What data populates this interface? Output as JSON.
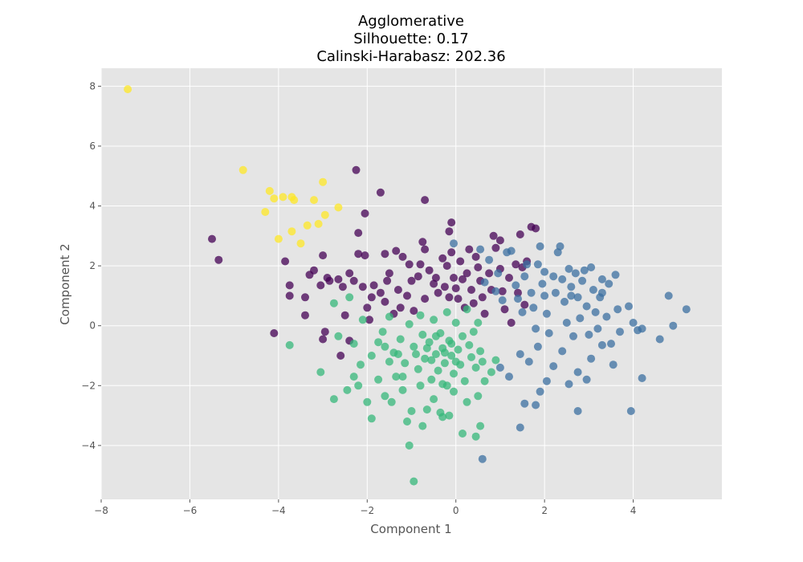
{
  "chart_data": {
    "type": "scatter",
    "title_lines": [
      "Agglomerative",
      "Silhouette: 0.17",
      "Calinski-Harabasz: 202.36"
    ],
    "xlabel": "Component 1",
    "ylabel": "Component 2",
    "xlim": [
      -8,
      6
    ],
    "ylim": [
      -5.8,
      8.6
    ],
    "xticks": [
      -8,
      -6,
      -4,
      -2,
      0,
      2,
      4
    ],
    "yticks": [
      -4,
      -2,
      0,
      2,
      4,
      6,
      8
    ],
    "xtick_labels": [
      "−8",
      "−6",
      "−4",
      "−2",
      "0",
      "2",
      "4"
    ],
    "ytick_labels": [
      "−4",
      "−2",
      "0",
      "2",
      "4",
      "6",
      "8"
    ],
    "grid": true,
    "background": "#e5e5e5",
    "marker_opacity": 0.75,
    "series": [
      {
        "color": "#fde725",
        "points": [
          [
            -7.4,
            7.9
          ],
          [
            -4.8,
            5.2
          ],
          [
            -4.2,
            4.5
          ],
          [
            -4.1,
            4.25
          ],
          [
            -3.9,
            4.3
          ],
          [
            -3.7,
            4.3
          ],
          [
            -3.65,
            4.2
          ],
          [
            -3.0,
            4.8
          ],
          [
            -3.2,
            4.2
          ],
          [
            -2.65,
            3.95
          ],
          [
            -2.95,
            3.7
          ],
          [
            -3.1,
            3.4
          ],
          [
            -3.35,
            3.35
          ],
          [
            -4.3,
            3.8
          ],
          [
            -3.7,
            3.15
          ],
          [
            -4.0,
            2.9
          ],
          [
            -3.5,
            2.75
          ]
        ]
      },
      {
        "color": "#440154",
        "points": [
          [
            -5.5,
            2.9
          ],
          [
            -5.35,
            2.2
          ],
          [
            -4.1,
            -0.25
          ],
          [
            -3.85,
            2.15
          ],
          [
            -3.75,
            1.35
          ],
          [
            -3.75,
            1.0
          ],
          [
            -3.4,
            0.95
          ],
          [
            -3.4,
            0.35
          ],
          [
            -3.3,
            1.7
          ],
          [
            -3.2,
            1.85
          ],
          [
            -3.05,
            1.35
          ],
          [
            -3.0,
            2.35
          ],
          [
            -2.9,
            1.6
          ],
          [
            -2.85,
            1.5
          ],
          [
            -2.65,
            1.55
          ],
          [
            -2.55,
            1.3
          ],
          [
            -2.5,
            0.35
          ],
          [
            -3.0,
            -0.45
          ],
          [
            -2.95,
            -0.2
          ],
          [
            -2.6,
            -1.0
          ],
          [
            -2.4,
            -0.5
          ],
          [
            -2.25,
            5.2
          ],
          [
            -2.2,
            3.1
          ],
          [
            -2.05,
            3.75
          ],
          [
            -2.2,
            2.4
          ],
          [
            -2.05,
            2.35
          ],
          [
            -2.4,
            1.75
          ],
          [
            -2.3,
            1.5
          ],
          [
            -2.1,
            1.3
          ],
          [
            -2.0,
            0.6
          ],
          [
            -1.95,
            0.2
          ],
          [
            -1.7,
            4.45
          ],
          [
            -1.6,
            2.4
          ],
          [
            -1.5,
            1.75
          ],
          [
            -1.7,
            1.1
          ],
          [
            -1.6,
            0.8
          ],
          [
            -1.4,
            0.4
          ],
          [
            -1.35,
            2.5
          ],
          [
            -1.3,
            1.2
          ],
          [
            -1.25,
            0.6
          ],
          [
            -1.2,
            2.3
          ],
          [
            -1.05,
            2.05
          ],
          [
            -1.1,
            1.0
          ],
          [
            -0.95,
            0.5
          ],
          [
            -0.85,
            1.65
          ],
          [
            -0.8,
            2.05
          ],
          [
            -0.7,
            4.2
          ],
          [
            -0.75,
            2.8
          ],
          [
            -0.7,
            2.55
          ],
          [
            -0.6,
            1.85
          ],
          [
            -0.5,
            1.4
          ],
          [
            -0.4,
            1.1
          ],
          [
            -0.3,
            2.25
          ],
          [
            -0.2,
            2.0
          ],
          [
            -0.25,
            1.3
          ],
          [
            -0.15,
            0.95
          ],
          [
            -0.1,
            3.45
          ],
          [
            -0.15,
            3.15
          ],
          [
            -0.1,
            2.45
          ],
          [
            -0.05,
            1.6
          ],
          [
            0.05,
            0.9
          ],
          [
            0.1,
            2.15
          ],
          [
            0.15,
            1.55
          ],
          [
            0.2,
            0.6
          ],
          [
            0.3,
            2.55
          ],
          [
            0.35,
            1.2
          ],
          [
            0.4,
            0.75
          ],
          [
            0.45,
            2.3
          ],
          [
            0.5,
            1.95
          ],
          [
            0.55,
            1.5
          ],
          [
            0.6,
            0.95
          ],
          [
            0.65,
            0.4
          ],
          [
            0.75,
            1.75
          ],
          [
            0.8,
            1.2
          ],
          [
            0.85,
            3.0
          ],
          [
            0.9,
            2.6
          ],
          [
            1.0,
            2.85
          ],
          [
            1.0,
            1.9
          ],
          [
            1.05,
            1.15
          ],
          [
            1.1,
            0.55
          ],
          [
            1.2,
            1.6
          ],
          [
            1.25,
            0.1
          ],
          [
            1.35,
            2.05
          ],
          [
            1.4,
            1.1
          ],
          [
            1.45,
            3.05
          ],
          [
            1.5,
            1.95
          ],
          [
            1.55,
            0.7
          ],
          [
            1.6,
            2.15
          ],
          [
            1.7,
            3.3
          ],
          [
            1.8,
            3.25
          ],
          [
            -1.85,
            1.35
          ],
          [
            -1.55,
            1.5
          ],
          [
            -1.0,
            1.5
          ],
          [
            -0.45,
            1.6
          ],
          [
            0.0,
            1.25
          ],
          [
            -0.7,
            0.9
          ],
          [
            -1.9,
            0.95
          ],
          [
            0.25,
            1.75
          ]
        ]
      },
      {
        "color": "#3b6fa0",
        "points": [
          [
            -0.05,
            2.75
          ],
          [
            0.55,
            2.55
          ],
          [
            0.75,
            2.2
          ],
          [
            0.65,
            1.45
          ],
          [
            0.95,
            1.75
          ],
          [
            0.9,
            1.15
          ],
          [
            1.05,
            0.85
          ],
          [
            1.15,
            2.45
          ],
          [
            1.25,
            2.5
          ],
          [
            1.35,
            1.35
          ],
          [
            1.4,
            0.9
          ],
          [
            1.5,
            0.45
          ],
          [
            1.55,
            1.65
          ],
          [
            1.6,
            2.05
          ],
          [
            1.7,
            1.1
          ],
          [
            1.75,
            0.6
          ],
          [
            1.8,
            -0.1
          ],
          [
            1.85,
            2.05
          ],
          [
            1.9,
            2.65
          ],
          [
            1.95,
            1.4
          ],
          [
            2.0,
            1.0
          ],
          [
            2.05,
            0.4
          ],
          [
            2.1,
            -0.25
          ],
          [
            2.2,
            1.65
          ],
          [
            2.25,
            1.1
          ],
          [
            2.3,
            2.45
          ],
          [
            2.35,
            2.65
          ],
          [
            2.4,
            1.55
          ],
          [
            2.45,
            0.8
          ],
          [
            2.5,
            0.1
          ],
          [
            2.55,
            1.9
          ],
          [
            2.6,
            1.3
          ],
          [
            2.65,
            -0.35
          ],
          [
            2.7,
            1.75
          ],
          [
            2.75,
            0.95
          ],
          [
            2.8,
            0.25
          ],
          [
            2.85,
            1.5
          ],
          [
            2.9,
            1.85
          ],
          [
            2.95,
            0.65
          ],
          [
            3.0,
            -0.3
          ],
          [
            3.05,
            1.95
          ],
          [
            3.1,
            1.2
          ],
          [
            3.15,
            0.45
          ],
          [
            3.2,
            -0.1
          ],
          [
            3.25,
            0.95
          ],
          [
            3.3,
            1.55
          ],
          [
            3.4,
            0.3
          ],
          [
            3.45,
            1.4
          ],
          [
            3.5,
            -0.6
          ],
          [
            3.6,
            1.7
          ],
          [
            3.65,
            0.55
          ],
          [
            3.7,
            -0.2
          ],
          [
            3.9,
            0.65
          ],
          [
            4.0,
            0.1
          ],
          [
            4.1,
            -0.15
          ],
          [
            4.2,
            -0.1
          ],
          [
            4.6,
            -0.45
          ],
          [
            4.8,
            1.0
          ],
          [
            4.9,
            0.0
          ],
          [
            5.2,
            0.55
          ],
          [
            1.45,
            -0.95
          ],
          [
            1.65,
            -1.2
          ],
          [
            1.85,
            -0.7
          ],
          [
            2.05,
            -1.85
          ],
          [
            2.2,
            -1.35
          ],
          [
            2.4,
            -0.85
          ],
          [
            2.55,
            -1.95
          ],
          [
            2.75,
            -1.55
          ],
          [
            2.95,
            -1.8
          ],
          [
            3.05,
            -1.1
          ],
          [
            3.3,
            -0.65
          ],
          [
            3.55,
            -1.3
          ],
          [
            4.2,
            -1.75
          ],
          [
            2.75,
            -2.85
          ],
          [
            3.95,
            -2.85
          ],
          [
            1.45,
            -3.4
          ],
          [
            0.6,
            -4.45
          ],
          [
            1.55,
            -2.6
          ],
          [
            1.8,
            -2.65
          ],
          [
            1.9,
            -2.2
          ],
          [
            1.2,
            -1.7
          ],
          [
            1.0,
            -1.4
          ],
          [
            2.6,
            1.0
          ],
          [
            3.3,
            1.1
          ],
          [
            2.0,
            1.8
          ]
        ]
      },
      {
        "color": "#35b779",
        "points": [
          [
            -3.75,
            -0.65
          ],
          [
            -2.75,
            0.75
          ],
          [
            -2.4,
            0.95
          ],
          [
            -2.65,
            -0.35
          ],
          [
            -2.3,
            -0.6
          ],
          [
            -2.15,
            -1.3
          ],
          [
            -2.3,
            -1.7
          ],
          [
            -2.45,
            -2.15
          ],
          [
            -2.75,
            -2.45
          ],
          [
            -3.05,
            -1.55
          ],
          [
            -2.2,
            -2.0
          ],
          [
            -2.0,
            -2.55
          ],
          [
            -1.9,
            -3.1
          ],
          [
            -1.75,
            -1.8
          ],
          [
            -1.6,
            -2.35
          ],
          [
            -1.5,
            -1.2
          ],
          [
            -1.45,
            -2.55
          ],
          [
            -1.35,
            -1.7
          ],
          [
            -1.2,
            -2.15
          ],
          [
            -1.1,
            -3.2
          ],
          [
            -1.05,
            -4.0
          ],
          [
            -1.0,
            -2.85
          ],
          [
            -0.95,
            -5.2
          ],
          [
            -0.8,
            -2.0
          ],
          [
            -0.75,
            -3.35
          ],
          [
            -0.65,
            -2.8
          ],
          [
            -0.5,
            -2.45
          ],
          [
            -0.35,
            -2.9
          ],
          [
            -0.3,
            -3.05
          ],
          [
            -0.2,
            -2.0
          ],
          [
            -0.15,
            -3.0
          ],
          [
            -0.05,
            -2.2
          ],
          [
            0.15,
            -3.6
          ],
          [
            0.25,
            -2.55
          ],
          [
            0.45,
            -3.7
          ],
          [
            0.55,
            -3.35
          ],
          [
            0.5,
            -2.35
          ],
          [
            0.65,
            -1.85
          ],
          [
            0.8,
            -1.55
          ],
          [
            0.9,
            -1.15
          ],
          [
            -1.9,
            -1.0
          ],
          [
            -1.75,
            -0.55
          ],
          [
            -1.65,
            -0.2
          ],
          [
            -1.5,
            0.3
          ],
          [
            -1.4,
            -0.9
          ],
          [
            -1.25,
            -0.45
          ],
          [
            -1.15,
            -1.25
          ],
          [
            -1.05,
            0.05
          ],
          [
            -0.95,
            -0.7
          ],
          [
            -0.85,
            -1.45
          ],
          [
            -0.75,
            -0.3
          ],
          [
            -0.7,
            -1.1
          ],
          [
            -0.6,
            -0.55
          ],
          [
            -0.55,
            -1.8
          ],
          [
            -0.5,
            0.2
          ],
          [
            -0.45,
            -0.95
          ],
          [
            -0.4,
            -1.5
          ],
          [
            -0.35,
            -0.25
          ],
          [
            -0.3,
            -0.75
          ],
          [
            -0.25,
            -1.25
          ],
          [
            -0.2,
            0.45
          ],
          [
            -0.15,
            -0.5
          ],
          [
            -0.1,
            -1.0
          ],
          [
            -0.05,
            -1.6
          ],
          [
            0.0,
            0.1
          ],
          [
            0.05,
            -0.8
          ],
          [
            0.1,
            -1.3
          ],
          [
            0.15,
            -0.35
          ],
          [
            0.2,
            -1.85
          ],
          [
            0.25,
            0.55
          ],
          [
            0.3,
            -0.65
          ],
          [
            0.35,
            -1.05
          ],
          [
            0.4,
            -0.2
          ],
          [
            0.45,
            -1.4
          ],
          [
            0.5,
            0.1
          ],
          [
            0.55,
            -0.85
          ],
          [
            0.6,
            -1.2
          ],
          [
            -1.3,
            -0.95
          ],
          [
            -0.9,
            -0.95
          ],
          [
            -0.65,
            -0.75
          ],
          [
            -0.55,
            -1.15
          ],
          [
            -0.45,
            -0.35
          ],
          [
            -0.25,
            -0.9
          ],
          [
            -0.1,
            -0.6
          ],
          [
            0.0,
            -1.2
          ],
          [
            -1.6,
            -0.7
          ],
          [
            -2.1,
            0.2
          ],
          [
            -0.8,
            0.35
          ],
          [
            -1.2,
            -1.7
          ],
          [
            -0.3,
            -1.95
          ]
        ]
      }
    ]
  }
}
